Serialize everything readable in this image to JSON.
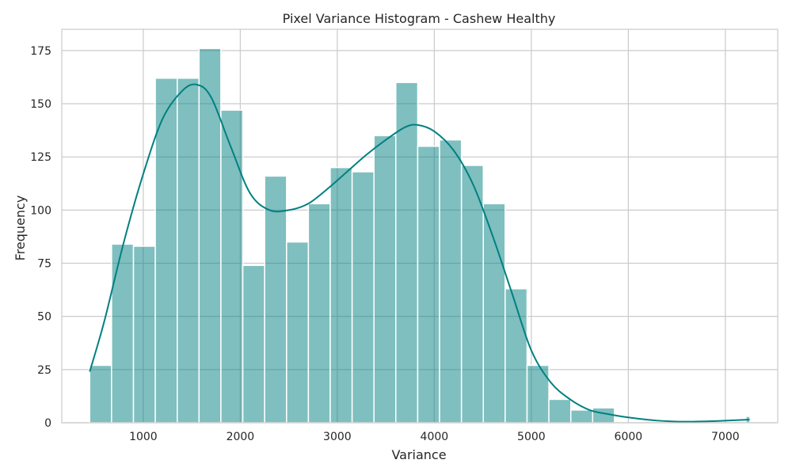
{
  "chart_data": {
    "type": "bar",
    "title": "Pixel Variance Histogram - Cashew Healthy",
    "xlabel": "Variance",
    "ylabel": "Frequency",
    "xlim": [
      160,
      7540
    ],
    "ylim": [
      0,
      185
    ],
    "xticks": [
      1000,
      2000,
      3000,
      4000,
      5000,
      6000,
      7000
    ],
    "yticks": [
      0,
      25,
      50,
      75,
      100,
      125,
      150,
      175
    ],
    "grid": true,
    "legend": "none",
    "colors": {
      "bar": "#008080",
      "kde": "#008080",
      "grid": "#cccccc",
      "frame": "#cccccc"
    },
    "bins": [
      {
        "x0": 448,
        "x1": 673,
        "count": 27
      },
      {
        "x0": 673,
        "x1": 899,
        "count": 84
      },
      {
        "x0": 899,
        "x1": 1124,
        "count": 83
      },
      {
        "x0": 1124,
        "x1": 1350,
        "count": 162
      },
      {
        "x0": 1350,
        "x1": 1575,
        "count": 162
      },
      {
        "x0": 1575,
        "x1": 1800,
        "count": 176
      },
      {
        "x0": 1800,
        "x1": 2026,
        "count": 147
      },
      {
        "x0": 2026,
        "x1": 2251,
        "count": 74
      },
      {
        "x0": 2251,
        "x1": 2477,
        "count": 116
      },
      {
        "x0": 2477,
        "x1": 2702,
        "count": 85
      },
      {
        "x0": 2702,
        "x1": 2927,
        "count": 103
      },
      {
        "x0": 2927,
        "x1": 3153,
        "count": 120
      },
      {
        "x0": 3153,
        "x1": 3378,
        "count": 118
      },
      {
        "x0": 3378,
        "x1": 3603,
        "count": 135
      },
      {
        "x0": 3603,
        "x1": 3829,
        "count": 160
      },
      {
        "x0": 3829,
        "x1": 4054,
        "count": 130
      },
      {
        "x0": 4054,
        "x1": 4280,
        "count": 133
      },
      {
        "x0": 4280,
        "x1": 4505,
        "count": 121
      },
      {
        "x0": 4505,
        "x1": 4730,
        "count": 103
      },
      {
        "x0": 4730,
        "x1": 4956,
        "count": 63
      },
      {
        "x0": 4956,
        "x1": 5181,
        "count": 27
      },
      {
        "x0": 5181,
        "x1": 5407,
        "count": 11
      },
      {
        "x0": 5407,
        "x1": 5632,
        "count": 6
      },
      {
        "x0": 5632,
        "x1": 5857,
        "count": 7
      },
      {
        "x0": 7212,
        "x1": 7254,
        "count": 3
      }
    ],
    "kde": {
      "x": [
        448,
        600,
        800,
        1000,
        1200,
        1400,
        1550,
        1700,
        1900,
        2100,
        2300,
        2500,
        2700,
        2900,
        3100,
        3300,
        3500,
        3700,
        3830,
        4000,
        4200,
        4400,
        4600,
        4800,
        5000,
        5200,
        5400,
        5600,
        5800,
        6000,
        6300,
        6600,
        6900,
        7250
      ],
      "y": [
        24,
        48,
        85,
        117,
        143,
        156,
        159,
        153,
        130,
        108,
        100,
        100,
        103,
        110,
        118,
        126,
        133,
        139,
        140,
        137,
        128,
        112,
        88,
        61,
        34,
        19,
        11,
        6,
        4,
        2.5,
        1,
        0.5,
        0.8,
        1.5
      ]
    }
  }
}
